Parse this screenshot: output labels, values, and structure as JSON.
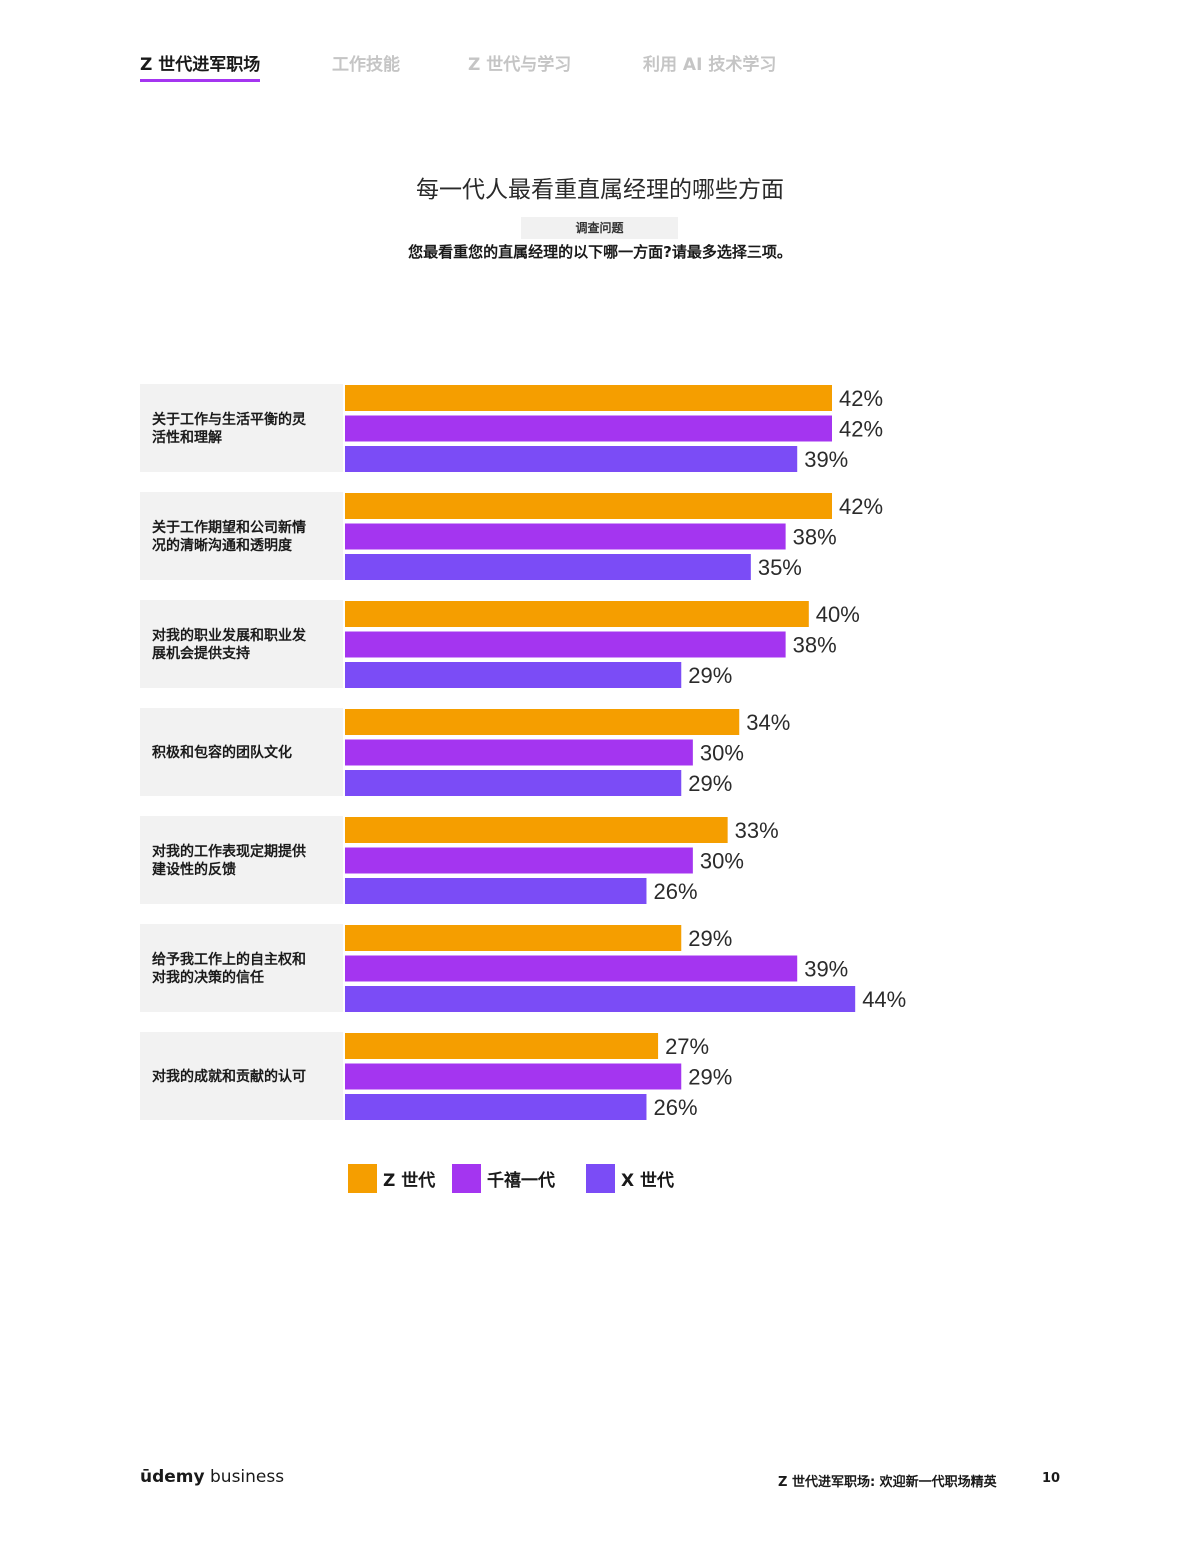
{
  "nav": {
    "tabs": [
      {
        "label": "Z 世代进军职场",
        "active": true
      },
      {
        "label": "工作技能",
        "active": false
      },
      {
        "label": "Z 世代与学习",
        "active": false
      },
      {
        "label": "利用 AI 技术学习",
        "active": false
      }
    ]
  },
  "header": {
    "title": "每一代人最看重直属经理的哪些方面",
    "question_tag": "调查问题",
    "question": "您最看重您的直属经理的以下哪一方面?请最多选择三项。"
  },
  "colors": {
    "gen_z": "#f59e00",
    "millennial": "#a435f0",
    "gen_x": "#7b4cf6",
    "accent": "#a435f0"
  },
  "chart_data": {
    "type": "bar",
    "orientation": "horizontal",
    "categories": [
      [
        "关于工作与生活平衡的灵",
        "活性和理解"
      ],
      [
        "关于工作期望和公司新情",
        "况的清晰沟通和透明度"
      ],
      [
        "对我的职业发展和职业发",
        "展机会提供支持"
      ],
      [
        "积极和包容的团队文化"
      ],
      [
        "对我的工作表现定期提供",
        "建设性的反馈"
      ],
      [
        "给予我工作上的自主权和",
        "对我的决策的信任"
      ],
      [
        "对我的成就和贡献的认可"
      ]
    ],
    "series": [
      {
        "name": "Z 世代",
        "color": "#f59e00",
        "values": [
          42,
          42,
          40,
          34,
          33,
          29,
          27
        ]
      },
      {
        "name": "千禧一代",
        "color": "#a435f0",
        "values": [
          42,
          38,
          38,
          30,
          30,
          39,
          29
        ]
      },
      {
        "name": "X 世代",
        "color": "#7b4cf6",
        "values": [
          39,
          35,
          29,
          29,
          26,
          44,
          26
        ]
      }
    ],
    "value_suffix": "%",
    "legend_position": "bottom",
    "grid": false
  },
  "legend": {
    "items": [
      {
        "label": "Z 世代",
        "color": "#f59e00"
      },
      {
        "label": "千禧一代",
        "color": "#a435f0"
      },
      {
        "label": "X 世代",
        "color": "#7b4cf6"
      }
    ]
  },
  "footer": {
    "logo_brand": "ūdemy",
    "logo_suffix": " business",
    "text": "Z 世代进军职场: 欢迎新一代职场精英",
    "page": "10"
  }
}
